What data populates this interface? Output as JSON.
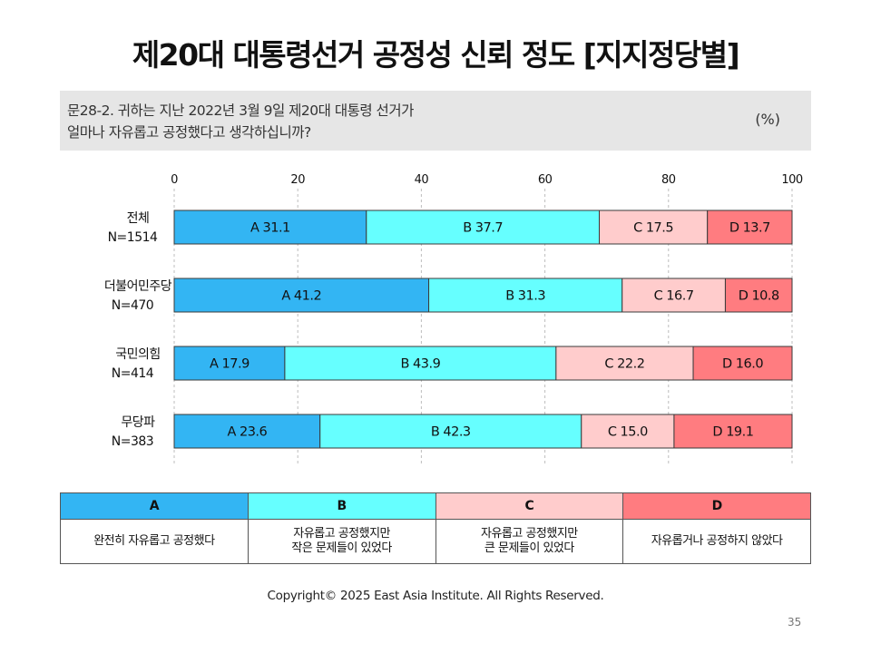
{
  "title": "제20대 대통령선거 공정성 신뢰 정도 [지지정당별]",
  "question": {
    "line1": "문28-2. 귀하는 지난 2022년 3월 9일 제20대 대통령 선거가",
    "line2": "얼마나 자유롭고 공정했다고 생각하십니까?",
    "unit": "(%)"
  },
  "chart_data": {
    "type": "bar",
    "orientation": "horizontal",
    "stacked": true,
    "x_ticks": [
      "0",
      "20",
      "40",
      "60",
      "80",
      "100"
    ],
    "xlim": [
      0,
      100
    ],
    "grid": true,
    "categories": [
      {
        "line1": "전체",
        "line2": "N=1514"
      },
      {
        "line1": "더불어민주당",
        "line2": "N=470"
      },
      {
        "line1": "국민의힘",
        "line2": "N=414"
      },
      {
        "line1": "무당파",
        "line2": "N=383"
      }
    ],
    "series": [
      {
        "name": "A",
        "color": "#33b5f3",
        "values": [
          31.1,
          41.2,
          17.9,
          23.6
        ],
        "labels": [
          "A 31.1",
          "A 41.2",
          "A 17.9",
          "A 23.6"
        ]
      },
      {
        "name": "B",
        "color": "#66ffff",
        "values": [
          37.7,
          31.3,
          43.9,
          42.3
        ],
        "labels": [
          "B 37.7",
          "B 31.3",
          "B 43.9",
          "B 42.3"
        ]
      },
      {
        "name": "C",
        "color": "#ffcccc",
        "values": [
          17.5,
          16.7,
          22.2,
          15.0
        ],
        "labels": [
          "C 17.5",
          "C 16.7",
          "C 22.2",
          "C 15.0"
        ]
      },
      {
        "name": "D",
        "color": "#ff7c80",
        "values": [
          13.7,
          10.8,
          16.0,
          19.1
        ],
        "labels": [
          "D 13.7",
          "D 10.8",
          "D 16.0",
          "D 19.1"
        ]
      }
    ]
  },
  "legend": [
    {
      "key": "A",
      "color": "#33b5f3",
      "desc": [
        "완전히 자유롭고 공정했다"
      ]
    },
    {
      "key": "B",
      "color": "#66ffff",
      "desc": [
        "자유롭고 공정했지만",
        "작은 문제들이 있었다"
      ]
    },
    {
      "key": "C",
      "color": "#ffcccc",
      "desc": [
        "자유롭고 공정했지만",
        "큰 문제들이 있었다"
      ]
    },
    {
      "key": "D",
      "color": "#ff7c80",
      "desc": [
        "자유롭거나 공정하지 않았다"
      ]
    }
  ],
  "copyright": "Copyright© 2025 East Asia Institute. All Rights Reserved.",
  "page_number": "35"
}
